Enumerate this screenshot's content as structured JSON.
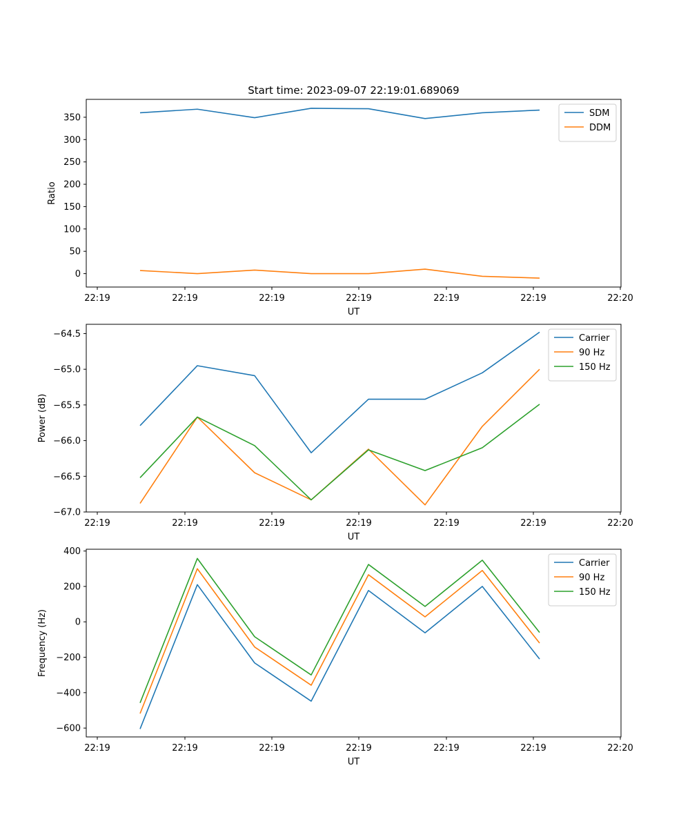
{
  "chart_data": [
    {
      "type": "line",
      "title": "Start time: 2023-09-07 22:19:01.689069",
      "xlabel": "UT",
      "ylabel": "Ratio",
      "x_tick_labels": [
        "22:19",
        "22:19",
        "22:19",
        "22:19",
        "22:19",
        "22:19",
        "22:20"
      ],
      "ylim": [
        -30,
        390
      ],
      "yticks": [
        0,
        50,
        100,
        150,
        200,
        250,
        300,
        350
      ],
      "ytick_labels": [
        "0",
        "50",
        "100",
        "150",
        "200",
        "250",
        "300",
        "350"
      ],
      "legend_position": "top-right",
      "series": [
        {
          "name": "SDM",
          "color": "#1f77b4",
          "values": [
            360,
            368,
            349,
            370,
            369,
            347,
            360,
            366
          ]
        },
        {
          "name": "DDM",
          "color": "#ff7f0e",
          "values": [
            7,
            0,
            8,
            0,
            0,
            10,
            -6,
            -10
          ]
        }
      ]
    },
    {
      "type": "line",
      "title": "",
      "xlabel": "UT",
      "ylabel": "Power (dB)",
      "x_tick_labels": [
        "22:19",
        "22:19",
        "22:19",
        "22:19",
        "22:19",
        "22:19",
        "22:20"
      ],
      "ylim": [
        -67.0,
        -64.37
      ],
      "yticks": [
        -67.0,
        -66.5,
        -66.0,
        -65.5,
        -65.0,
        -64.5
      ],
      "ytick_labels": [
        "−67.0",
        "−66.5",
        "−66.0",
        "−65.5",
        "−65.0",
        "−64.5"
      ],
      "legend_position": "top-right",
      "series": [
        {
          "name": "Carrier",
          "color": "#1f77b4",
          "values": [
            -65.79,
            -64.95,
            -65.09,
            -66.17,
            -65.42,
            -65.42,
            -65.05,
            -64.48
          ]
        },
        {
          "name": "90 Hz",
          "color": "#ff7f0e",
          "values": [
            -66.88,
            -65.67,
            -66.45,
            -66.83,
            -66.12,
            -66.9,
            -65.8,
            -65.0
          ]
        },
        {
          "name": "150 Hz",
          "color": "#2ca02c",
          "values": [
            -66.52,
            -65.67,
            -66.07,
            -66.83,
            -66.13,
            -66.42,
            -66.1,
            -65.49
          ]
        }
      ]
    },
    {
      "type": "line",
      "title": "",
      "xlabel": "UT",
      "ylabel": "Frequency (Hz)",
      "x_tick_labels": [
        "22:19",
        "22:19",
        "22:19",
        "22:19",
        "22:19",
        "22:19",
        "22:20"
      ],
      "ylim": [
        -650,
        410
      ],
      "yticks": [
        -600,
        -400,
        -200,
        0,
        200,
        400
      ],
      "ytick_labels": [
        "−600",
        "−400",
        "−200",
        "0",
        "200",
        "400"
      ],
      "legend_position": "top-right",
      "series": [
        {
          "name": "Carrier",
          "color": "#1f77b4",
          "values": [
            -605,
            210,
            -232,
            -448,
            177,
            -62,
            200,
            -210
          ]
        },
        {
          "name": "90 Hz",
          "color": "#ff7f0e",
          "values": [
            -518,
            300,
            -142,
            -358,
            266,
            28,
            290,
            -120
          ]
        },
        {
          "name": "150 Hz",
          "color": "#2ca02c",
          "values": [
            -458,
            358,
            -84,
            -300,
            324,
            87,
            348,
            -60
          ]
        }
      ]
    }
  ]
}
